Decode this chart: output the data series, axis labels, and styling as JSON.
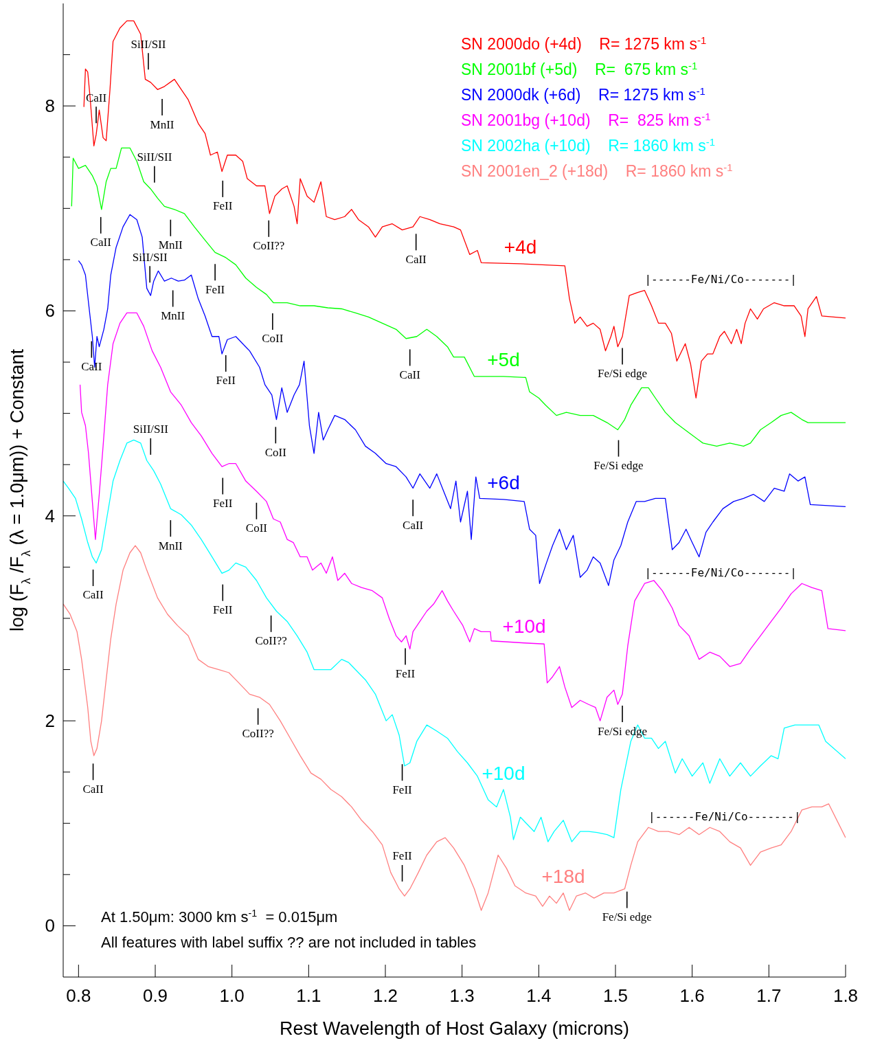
{
  "chart_data": {
    "type": "line",
    "xlabel": "Rest Wavelength of Host Galaxy (microns)",
    "ylabel": "log (F$_{λ}$ /F$_{λ}$ (λ = 1.0μm)) + Constant",
    "xlim": [
      0.78,
      1.8
    ],
    "xticks": [
      0.8,
      0.9,
      {
        "value": 1,
        "label": "1.0"
      },
      1.1,
      1.2,
      1.3,
      1.4,
      1.5,
      1.6,
      1.7,
      1.8
    ],
    "ylim": [
      -0.5,
      9
    ],
    "yticks": [
      0,
      {
        "value": 0.5,
        "label": null
      },
      {
        "value": 1,
        "label": null
      },
      {
        "value": 1.5,
        "label": null
      },
      2,
      {
        "value": 2.5,
        "label": null
      },
      {
        "value": 3,
        "label": null
      },
      {
        "value": 3.5,
        "label": null
      },
      4,
      {
        "value": 4.5,
        "label": null
      },
      {
        "value": 5,
        "label": null
      },
      {
        "value": 5.5,
        "label": null
      },
      6,
      {
        "value": 6.5,
        "label": null
      },
      {
        "value": 7,
        "label": null
      },
      {
        "value": 7.5,
        "label": null
      },
      8,
      {
        "value": 8.5,
        "label": null
      }
    ],
    "legend": "top right",
    "marker": "none",
    "line_style": "solid",
    "series": [
      {
        "name": "SN 2000do (+4d)    R= 1275 km s$^{-1}$",
        "color": "#ff0000",
        "x": [
          0.807,
          0.809,
          0.812,
          0.815,
          0.82,
          0.823,
          0.827,
          0.832,
          0.836,
          0.841,
          0.845,
          0.854,
          0.863,
          0.872,
          0.881,
          0.887,
          0.894,
          0.903,
          0.912,
          0.925,
          0.934,
          0.943,
          0.956,
          0.965,
          0.972,
          0.981,
          0.987,
          0.994,
          1.005,
          1.014,
          1.02,
          1.032,
          1.043,
          1.049,
          1.056,
          1.065,
          1.072,
          1.081,
          1.085,
          1.089,
          1.098,
          1.107,
          1.116,
          1.123,
          1.134,
          1.147,
          1.156,
          1.165,
          1.178,
          1.187,
          1.196,
          1.209,
          1.222,
          1.236,
          1.245,
          1.258,
          1.271,
          1.289,
          1.298,
          1.31,
          1.32,
          1.325,
          1.376,
          1.434,
          1.44,
          1.447,
          1.454,
          1.463,
          1.471,
          1.48,
          1.487,
          1.494,
          1.498,
          1.503,
          1.509,
          1.518,
          1.529,
          1.538,
          1.547,
          1.556,
          1.565,
          1.573,
          1.58,
          1.591,
          1.598,
          1.605,
          1.612,
          1.62,
          1.627,
          1.636,
          1.642,
          1.651,
          1.658,
          1.664,
          1.669,
          1.676,
          1.685,
          1.693,
          1.707,
          1.72,
          1.733,
          1.742,
          1.747,
          1.751,
          1.762,
          1.769,
          1.8
        ],
        "values": [
          7.99,
          8.36,
          8.33,
          8.09,
          7.61,
          7.72,
          7.96,
          7.69,
          7.66,
          8.16,
          8.63,
          8.76,
          8.83,
          8.83,
          8.7,
          8.26,
          8.23,
          8.16,
          8.19,
          8.26,
          8.16,
          8.06,
          7.83,
          7.73,
          7.52,
          7.55,
          7.36,
          7.52,
          7.52,
          7.46,
          7.29,
          7.22,
          7.22,
          6.95,
          7.12,
          7.19,
          7.22,
          7.02,
          6.85,
          7.29,
          7.12,
          7.06,
          7.26,
          6.92,
          6.89,
          6.92,
          6.99,
          6.89,
          6.82,
          6.72,
          6.82,
          6.85,
          6.79,
          6.82,
          6.92,
          6.89,
          6.85,
          6.82,
          6.79,
          6.55,
          6.59,
          6.47,
          6.46,
          6.44,
          6.12,
          5.88,
          5.94,
          5.85,
          5.88,
          5.82,
          5.61,
          5.75,
          5.85,
          5.65,
          5.75,
          6.15,
          6.18,
          6.2,
          6.05,
          5.88,
          5.88,
          5.78,
          5.51,
          5.68,
          5.48,
          5.15,
          5.51,
          5.58,
          5.58,
          5.75,
          5.8,
          5.68,
          5.82,
          5.68,
          5.88,
          6.02,
          5.92,
          6.02,
          6.08,
          6.05,
          6.05,
          5.95,
          5.75,
          6.02,
          6.14,
          5.95,
          5.93
        ]
      },
      {
        "name": "SN 2001bf (+5d)    R=  675 km s$^{-1}$",
        "color": "#00ff00",
        "x": [
          0.791,
          0.793,
          0.8,
          0.809,
          0.818,
          0.824,
          0.83,
          0.836,
          0.842,
          0.849,
          0.856,
          0.867,
          0.876,
          0.885,
          0.894,
          0.903,
          0.912,
          0.925,
          0.938,
          0.951,
          0.965,
          0.978,
          0.992,
          1.005,
          1.018,
          1.032,
          1.045,
          1.054,
          1.072,
          1.089,
          1.107,
          1.125,
          1.143,
          1.161,
          1.178,
          1.196,
          1.214,
          1.227,
          1.241,
          1.254,
          1.267,
          1.281,
          1.289,
          1.303,
          1.316,
          1.354,
          1.383,
          1.388,
          1.4,
          1.409,
          1.423,
          1.436,
          1.454,
          1.471,
          1.489,
          1.503,
          1.512,
          1.52,
          1.534,
          1.543,
          1.552,
          1.565,
          1.578,
          1.596,
          1.614,
          1.632,
          1.649,
          1.667,
          1.676,
          1.689,
          1.703,
          1.716,
          1.729,
          1.743,
          1.751,
          1.8
        ],
        "values": [
          7.02,
          7.49,
          7.39,
          7.42,
          7.32,
          7.22,
          6.99,
          7.26,
          7.39,
          7.39,
          7.59,
          7.59,
          7.46,
          7.26,
          7.19,
          7.1,
          7.02,
          6.99,
          6.95,
          6.82,
          6.69,
          6.57,
          6.52,
          6.45,
          6.32,
          6.23,
          6.16,
          6.08,
          6.08,
          6.05,
          6.05,
          6.03,
          6.02,
          5.98,
          5.94,
          5.88,
          5.82,
          5.73,
          5.75,
          5.82,
          5.75,
          5.65,
          5.55,
          5.55,
          5.36,
          5.36,
          5.35,
          5.21,
          5.15,
          5.08,
          4.98,
          5.01,
          4.98,
          4.98,
          4.91,
          4.84,
          4.94,
          5.08,
          5.25,
          5.25,
          5.15,
          5.01,
          4.91,
          4.81,
          4.71,
          4.68,
          4.71,
          4.68,
          4.71,
          4.84,
          4.91,
          4.98,
          5.01,
          4.94,
          4.91,
          4.91
        ]
      },
      {
        "name": "SN 2000dk (+6d)    R= 1275 km s$^{-1}$",
        "color": "#0000ff",
        "x": [
          0.8,
          0.804,
          0.809,
          0.813,
          0.818,
          0.821,
          0.824,
          0.827,
          0.833,
          0.838,
          0.842,
          0.849,
          0.858,
          0.867,
          0.876,
          0.883,
          0.889,
          0.894,
          0.898,
          0.904,
          0.912,
          0.921,
          0.93,
          0.938,
          0.947,
          0.956,
          0.965,
          0.974,
          0.983,
          0.987,
          0.994,
          1.005,
          1.014,
          1.023,
          1.036,
          1.043,
          1.052,
          1.058,
          1.065,
          1.072,
          1.081,
          1.088,
          1.094,
          1.101,
          1.107,
          1.113,
          1.119,
          1.125,
          1.134,
          1.147,
          1.161,
          1.174,
          1.187,
          1.201,
          1.214,
          1.227,
          1.236,
          1.245,
          1.258,
          1.267,
          1.276,
          1.285,
          1.292,
          1.298,
          1.307,
          1.312,
          1.318,
          1.323,
          1.354,
          1.381,
          1.388,
          1.396,
          1.401,
          1.41,
          1.418,
          1.427,
          1.436,
          1.445,
          1.454,
          1.463,
          1.471,
          1.48,
          1.491,
          1.498,
          1.507,
          1.516,
          1.527,
          1.538,
          1.552,
          1.565,
          1.574,
          1.583,
          1.592,
          1.6,
          1.609,
          1.618,
          1.627,
          1.64,
          1.654,
          1.667,
          1.68,
          1.694,
          1.707,
          1.72,
          1.727,
          1.738,
          1.747,
          1.754,
          1.8
        ],
        "values": [
          6.49,
          6.45,
          6.35,
          6.08,
          5.75,
          5.45,
          5.75,
          5.65,
          5.82,
          6.02,
          6.35,
          6.62,
          6.82,
          6.94,
          6.89,
          6.72,
          6.22,
          6.15,
          6.29,
          6.39,
          6.29,
          6.32,
          6.29,
          6.3,
          6.35,
          6.12,
          5.95,
          5.75,
          5.75,
          5.58,
          5.72,
          5.75,
          5.68,
          5.61,
          5.45,
          5.28,
          5.18,
          4.94,
          5.25,
          5.01,
          5.18,
          5.28,
          5.51,
          4.88,
          4.61,
          5.01,
          4.74,
          4.84,
          4.98,
          4.94,
          4.84,
          4.68,
          4.61,
          4.51,
          4.48,
          4.38,
          4.27,
          4.41,
          4.27,
          4.41,
          4.24,
          4.07,
          4.34,
          3.94,
          4.24,
          3.77,
          4.38,
          4.17,
          4.16,
          4.14,
          3.87,
          3.81,
          3.34,
          3.54,
          3.71,
          3.87,
          3.67,
          3.81,
          3.4,
          3.47,
          3.6,
          3.54,
          3.32,
          3.57,
          3.71,
          3.94,
          4.14,
          4.14,
          4.17,
          4.17,
          3.67,
          3.74,
          3.87,
          3.74,
          3.6,
          3.84,
          3.94,
          4.07,
          4.14,
          4.17,
          4.21,
          4.14,
          4.27,
          4.24,
          4.41,
          4.34,
          4.38,
          4.11,
          4.09
        ]
      },
      {
        "name": "SN 2001bg (+10d)    R=  825 km s$^{-1}$",
        "color": "#ff00ff",
        "x": [
          0.802,
          0.804,
          0.809,
          0.813,
          0.818,
          0.822,
          0.827,
          0.832,
          0.838,
          0.845,
          0.854,
          0.863,
          0.876,
          0.885,
          0.896,
          0.907,
          0.92,
          0.934,
          0.947,
          0.96,
          0.974,
          0.987,
          0.996,
          1.005,
          1.018,
          1.032,
          1.045,
          1.054,
          1.063,
          1.072,
          1.08,
          1.089,
          1.098,
          1.105,
          1.116,
          1.123,
          1.131,
          1.138,
          1.147,
          1.156,
          1.169,
          1.183,
          1.196,
          1.205,
          1.214,
          1.221,
          1.227,
          1.232,
          1.236,
          1.245,
          1.254,
          1.263,
          1.274,
          1.281,
          1.289,
          1.301,
          1.31,
          1.316,
          1.325,
          1.337,
          1.338,
          1.381,
          1.407,
          1.411,
          1.418,
          1.427,
          1.434,
          1.443,
          1.454,
          1.465,
          1.474,
          1.48,
          1.489,
          1.498,
          1.503,
          1.509,
          1.516,
          1.525,
          1.538,
          1.55,
          1.561,
          1.574,
          1.583,
          1.596,
          1.609,
          1.623,
          1.636,
          1.649,
          1.663,
          1.676,
          1.689,
          1.703,
          1.716,
          1.729,
          1.743,
          1.756,
          1.769,
          1.777,
          1.8
        ],
        "values": [
          5.28,
          5.01,
          4.88,
          4.61,
          4.14,
          3.77,
          4.21,
          4.68,
          5.28,
          5.68,
          5.88,
          5.98,
          5.98,
          5.85,
          5.61,
          5.45,
          5.21,
          5.08,
          4.91,
          4.78,
          4.61,
          4.48,
          4.51,
          4.51,
          4.34,
          4.24,
          4.14,
          3.97,
          3.94,
          3.77,
          3.74,
          3.6,
          3.6,
          3.47,
          3.54,
          3.44,
          3.6,
          3.37,
          3.44,
          3.34,
          3.3,
          3.27,
          3.2,
          3.0,
          2.83,
          2.77,
          2.83,
          2.7,
          2.87,
          2.97,
          3.07,
          3.14,
          3.27,
          3.17,
          3.07,
          2.93,
          2.77,
          2.9,
          2.87,
          2.87,
          2.78,
          2.76,
          2.75,
          2.37,
          2.43,
          2.53,
          2.33,
          2.13,
          2.2,
          2.16,
          2.13,
          2.0,
          2.23,
          2.3,
          2.16,
          2.26,
          2.73,
          3.17,
          3.34,
          3.37,
          3.27,
          3.1,
          2.93,
          2.83,
          2.6,
          2.67,
          2.63,
          2.53,
          2.56,
          2.7,
          2.83,
          2.97,
          3.1,
          3.24,
          3.34,
          3.3,
          3.27,
          2.9,
          2.88
        ]
      },
      {
        "name": "SN 2002ha (+10d)    R= 1860 km s$^{-1}$",
        "color": "#00ffff",
        "x": [
          0.78,
          0.787,
          0.796,
          0.804,
          0.812,
          0.818,
          0.823,
          0.83,
          0.836,
          0.845,
          0.854,
          0.863,
          0.872,
          0.881,
          0.889,
          0.898,
          0.907,
          0.92,
          0.934,
          0.947,
          0.96,
          0.974,
          0.987,
          0.996,
          1.005,
          1.018,
          1.032,
          1.045,
          1.058,
          1.072,
          1.085,
          1.098,
          1.107,
          1.121,
          1.129,
          1.143,
          1.152,
          1.161,
          1.174,
          1.187,
          1.201,
          1.209,
          1.218,
          1.225,
          1.232,
          1.241,
          1.254,
          1.267,
          1.281,
          1.294,
          1.307,
          1.32,
          1.334,
          1.345,
          1.354,
          1.363,
          1.367,
          1.376,
          1.385,
          1.394,
          1.403,
          1.412,
          1.42,
          1.432,
          1.443,
          1.454,
          1.465,
          1.476,
          1.489,
          1.498,
          1.507,
          1.52,
          1.529,
          1.538,
          1.547,
          1.556,
          1.565,
          1.578,
          1.587,
          1.6,
          1.614,
          1.623,
          1.636,
          1.649,
          1.663,
          1.676,
          1.689,
          1.703,
          1.712,
          1.72,
          1.734,
          1.747,
          1.765,
          1.774,
          1.8
        ],
        "values": [
          4.34,
          4.27,
          4.17,
          3.97,
          3.74,
          3.6,
          3.54,
          3.67,
          3.94,
          4.34,
          4.54,
          4.71,
          4.74,
          4.71,
          4.54,
          4.44,
          4.31,
          4.07,
          4.01,
          3.91,
          3.77,
          3.6,
          3.44,
          3.47,
          3.54,
          3.5,
          3.37,
          3.2,
          3.07,
          2.97,
          2.83,
          2.67,
          2.5,
          2.5,
          2.5,
          2.6,
          2.57,
          2.5,
          2.4,
          2.26,
          2.0,
          2.06,
          1.86,
          1.56,
          1.59,
          1.8,
          1.96,
          1.9,
          1.83,
          1.7,
          1.59,
          1.46,
          1.23,
          1.16,
          1.33,
          1.06,
          0.84,
          1.06,
          0.99,
          0.92,
          1.06,
          0.82,
          0.92,
          1.03,
          0.82,
          0.92,
          0.92,
          0.91,
          0.89,
          0.86,
          1.33,
          1.8,
          1.96,
          1.83,
          1.83,
          1.73,
          1.8,
          1.49,
          1.63,
          1.46,
          1.59,
          1.39,
          1.63,
          1.46,
          1.59,
          1.46,
          1.56,
          1.66,
          1.63,
          1.93,
          1.96,
          1.96,
          1.96,
          1.8,
          1.63
        ]
      },
      {
        "name": "SN 2001en_2 (+18d)    R= 1860 km s$^{-1}$",
        "color": "#ff7f7f",
        "x": [
          0.78,
          0.789,
          0.798,
          0.804,
          0.812,
          0.816,
          0.82,
          0.824,
          0.83,
          0.836,
          0.842,
          0.849,
          0.858,
          0.867,
          0.874,
          0.881,
          0.889,
          0.903,
          0.916,
          0.929,
          0.943,
          0.956,
          0.969,
          0.983,
          0.996,
          1.009,
          1.023,
          1.036,
          1.049,
          1.063,
          1.076,
          1.089,
          1.103,
          1.116,
          1.129,
          1.143,
          1.156,
          1.169,
          1.183,
          1.196,
          1.207,
          1.218,
          1.225,
          1.232,
          1.243,
          1.254,
          1.267,
          1.278,
          1.289,
          1.303,
          1.316,
          1.325,
          1.334,
          1.347,
          1.358,
          1.369,
          1.383,
          1.396,
          1.405,
          1.414,
          1.423,
          1.432,
          1.44,
          1.449,
          1.461,
          1.472,
          1.485,
          1.498,
          1.512,
          1.52,
          1.529,
          1.543,
          1.556,
          1.569,
          1.583,
          1.596,
          1.609,
          1.623,
          1.636,
          1.649,
          1.663,
          1.676,
          1.689,
          1.703,
          1.716,
          1.729,
          1.743,
          1.756,
          1.769,
          1.778,
          1.8
        ],
        "values": [
          3.14,
          3.04,
          2.87,
          2.6,
          2.13,
          1.8,
          1.66,
          1.73,
          2.0,
          2.4,
          2.8,
          3.14,
          3.47,
          3.64,
          3.71,
          3.64,
          3.47,
          3.2,
          3.04,
          2.93,
          2.83,
          2.6,
          2.53,
          2.5,
          2.47,
          2.37,
          2.26,
          2.23,
          2.16,
          2.0,
          1.83,
          1.66,
          1.49,
          1.43,
          1.33,
          1.26,
          1.16,
          1.03,
          0.92,
          0.79,
          0.52,
          0.36,
          0.29,
          0.36,
          0.52,
          0.69,
          0.82,
          0.86,
          0.76,
          0.59,
          0.36,
          0.15,
          0.32,
          0.69,
          0.56,
          0.39,
          0.32,
          0.29,
          0.19,
          0.29,
          0.22,
          0.32,
          0.15,
          0.29,
          0.32,
          0.27,
          0.32,
          0.32,
          0.36,
          0.59,
          0.82,
          0.96,
          0.92,
          0.92,
          0.89,
          0.96,
          0.89,
          0.96,
          0.92,
          0.82,
          0.76,
          0.59,
          0.72,
          0.76,
          0.79,
          0.92,
          1.13,
          1.16,
          1.16,
          1.19,
          0.86
        ]
      }
    ],
    "annotations": [
      {
        "text": "CaII",
        "x": 0.823,
        "y": 7.745
      },
      {
        "text": "SiII/SII",
        "x": 0.891,
        "y": 8.268
      },
      {
        "text": "MnII",
        "x": 0.909,
        "y": 8.155
      },
      {
        "text": "FeII",
        "x": 0.988,
        "y": 7.358
      },
      {
        "text": "CoII??",
        "x": 1.048,
        "y": 6.97
      },
      {
        "text": "CaII",
        "x": 1.24,
        "y": 6.839
      },
      {
        "text": "Fe/Si edge",
        "x": 1.509,
        "y": 5.725
      },
      {
        "text": "|------Fe/Ni/Co-------|",
        "x": 1.538,
        "y": 6.2
      },
      {
        "text": "+4d",
        "x": 1.376,
        "y": 6.46
      },
      {
        "text": "CaII",
        "x": 0.829,
        "y": 7.003
      },
      {
        "text": "SiII/SII",
        "x": 0.899,
        "y": 7.165
      },
      {
        "text": "MnII",
        "x": 0.92,
        "y": 6.977
      },
      {
        "text": "FeII",
        "x": 0.978,
        "y": 6.545
      },
      {
        "text": "CoII",
        "x": 1.053,
        "y": 6.064
      },
      {
        "text": "CaII",
        "x": 1.232,
        "y": 5.712
      },
      {
        "text": "Fe/Si edge",
        "x": 1.504,
        "y": 4.826
      },
      {
        "text": "+5d",
        "x": 1.354,
        "y": 5.36
      },
      {
        "text": "SiII/SII",
        "x": 0.893,
        "y": 6.189
      },
      {
        "text": "MnII",
        "x": 0.923,
        "y": 6.288
      },
      {
        "text": "CaII",
        "x": 0.817,
        "y": 5.791
      },
      {
        "text": "FeII",
        "x": 0.992,
        "y": 5.655
      },
      {
        "text": "CoII",
        "x": 1.057,
        "y": 4.955
      },
      {
        "text": "CaII",
        "x": 1.236,
        "y": 4.245
      },
      {
        "text": "+6d",
        "x": 1.354,
        "y": 4.16
      },
      {
        "text": "|------Fe/Ni/Co-------|",
        "x": 1.538,
        "y": 3.34
      },
      {
        "text": "FeII",
        "x": 0.988,
        "y": 4.458
      },
      {
        "text": "CoII",
        "x": 1.032,
        "y": 4.215
      },
      {
        "text": "FeII",
        "x": 1.226,
        "y": 2.795
      },
      {
        "text": "Fe/Si edge",
        "x": 1.509,
        "y": 2.235
      },
      {
        "text": "+10d",
        "x": 1.381,
        "y": 2.76
      },
      {
        "text": "SiII/SII",
        "x": 0.894,
        "y": 4.509
      },
      {
        "text": "MnII",
        "x": 0.92,
        "y": 4.045
      },
      {
        "text": "CaII",
        "x": 0.819,
        "y": 3.563
      },
      {
        "text": "FeII",
        "x": 0.988,
        "y": 3.418
      },
      {
        "text": "CoII??",
        "x": 1.051,
        "y": 3.115
      },
      {
        "text": "FeII",
        "x": 1.222,
        "y": 1.664
      },
      {
        "text": "+10d",
        "x": 1.354,
        "y": 1.33
      },
      {
        "text": "|------Fe/Ni/Co-------|",
        "x": 1.543,
        "y": 0.96
      },
      {
        "text": "CoII??",
        "x": 1.034,
        "y": 2.21
      },
      {
        "text": "CaII",
        "x": 0.819,
        "y": 1.67
      },
      {
        "text": "FeII",
        "x": 1.222,
        "y": 0.345
      },
      {
        "text": "Fe/Si edge",
        "x": 1.515,
        "y": 0.421
      },
      {
        "text": "+18d",
        "x": 1.432,
        "y": 0.32
      },
      "At 1.50μm: 3000 km s$^{-1}$  = 0.015μm",
      "All features with label suffix ?? are not included in tables"
    ]
  }
}
